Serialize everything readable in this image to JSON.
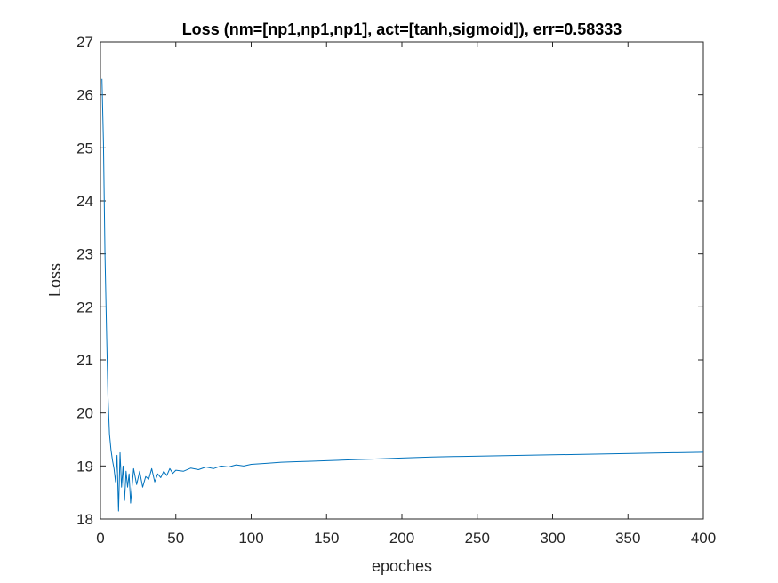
{
  "chart_data": {
    "type": "line",
    "title": "Loss (nm=[np1,np1,np1], act=[tanh,sigmoid]), err=0.58333",
    "xlabel": "epoches",
    "ylabel": "Loss",
    "xlim": [
      0,
      400
    ],
    "ylim": [
      18,
      27
    ],
    "xticks": [
      "0",
      "50",
      "100",
      "150",
      "200",
      "250",
      "300",
      "350",
      "400"
    ],
    "yticks": [
      "18",
      "19",
      "20",
      "21",
      "22",
      "23",
      "24",
      "25",
      "26",
      "27"
    ],
    "grid": false,
    "legend": "none",
    "series": [
      {
        "color": "#0072BD",
        "x": [
          1,
          2,
          3,
          4,
          5,
          6,
          7,
          8,
          9,
          10,
          11,
          12,
          13,
          14,
          15,
          16,
          17,
          18,
          19,
          20,
          22,
          24,
          26,
          28,
          30,
          32,
          34,
          36,
          38,
          40,
          42,
          44,
          46,
          48,
          50,
          55,
          60,
          65,
          70,
          75,
          80,
          85,
          90,
          95,
          100,
          110,
          120,
          130,
          140,
          150,
          160,
          170,
          180,
          190,
          200,
          220,
          240,
          260,
          280,
          300,
          320,
          340,
          360,
          380,
          400
        ],
        "y": [
          26.3,
          25.1,
          23.0,
          21.6,
          20.3,
          19.6,
          19.3,
          19.1,
          18.95,
          18.7,
          19.2,
          18.15,
          19.25,
          18.6,
          19.0,
          18.35,
          18.9,
          18.6,
          18.85,
          18.3,
          18.95,
          18.65,
          18.9,
          18.6,
          18.8,
          18.75,
          18.95,
          18.7,
          18.85,
          18.78,
          18.9,
          18.82,
          18.95,
          18.86,
          18.92,
          18.9,
          18.96,
          18.93,
          18.98,
          18.95,
          19.0,
          18.98,
          19.02,
          19.0,
          19.03,
          19.05,
          19.07,
          19.08,
          19.09,
          19.1,
          19.11,
          19.12,
          19.13,
          19.14,
          19.15,
          19.17,
          19.18,
          19.19,
          19.2,
          19.21,
          19.22,
          19.23,
          19.24,
          19.25,
          19.26
        ]
      }
    ]
  }
}
